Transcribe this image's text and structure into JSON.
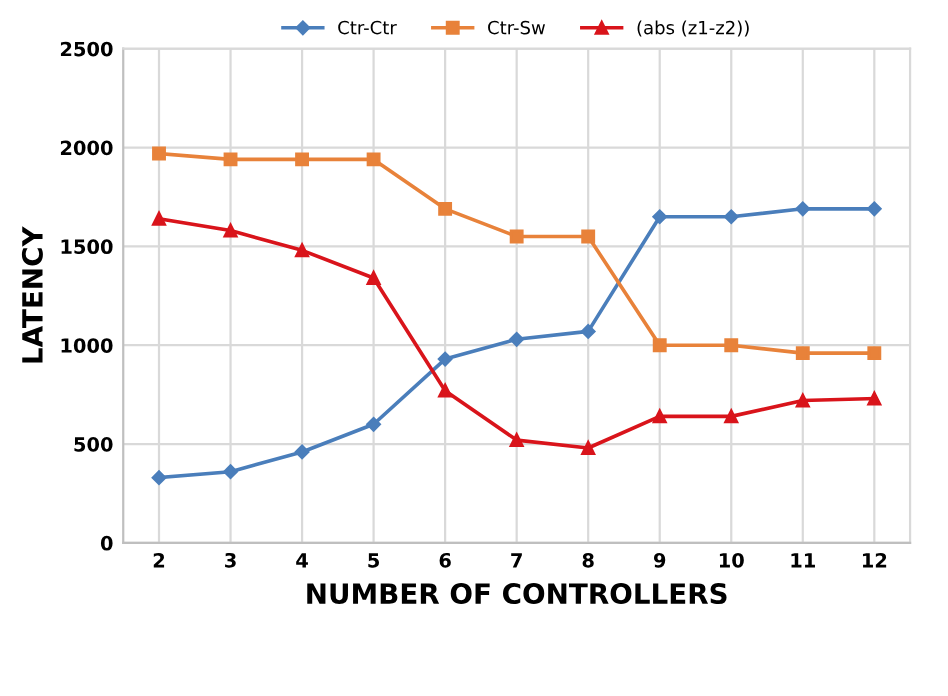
{
  "chart_data": {
    "type": "line",
    "xlabel": "NUMBER OF CONTROLLERS",
    "ylabel": "LATENCY",
    "categories": [
      "2",
      "3",
      "4",
      "5",
      "6",
      "7",
      "8",
      "9",
      "10",
      "11",
      "12"
    ],
    "series": [
      {
        "name": "Ctr-Ctr",
        "color": "#4a7ebb",
        "marker": "diamond",
        "values": [
          330,
          360,
          460,
          600,
          930,
          1030,
          1070,
          1650,
          1650,
          1690,
          1690
        ]
      },
      {
        "name": "Ctr-Sw",
        "color": "#e8823a",
        "marker": "square",
        "values": [
          1970,
          1940,
          1940,
          1940,
          1690,
          1550,
          1550,
          1000,
          1000,
          960,
          960
        ]
      },
      {
        "name": "(abs (z1-z2))",
        "color": "#d9141b",
        "marker": "triangle",
        "values": [
          1640,
          1580,
          1480,
          1340,
          770,
          520,
          480,
          640,
          640,
          720,
          730
        ]
      }
    ],
    "ylim": [
      0,
      2500
    ],
    "yticks": [
      0,
      500,
      1000,
      1500,
      2000,
      2500
    ],
    "grid": true,
    "legend": "top",
    "line_style": "solid"
  }
}
